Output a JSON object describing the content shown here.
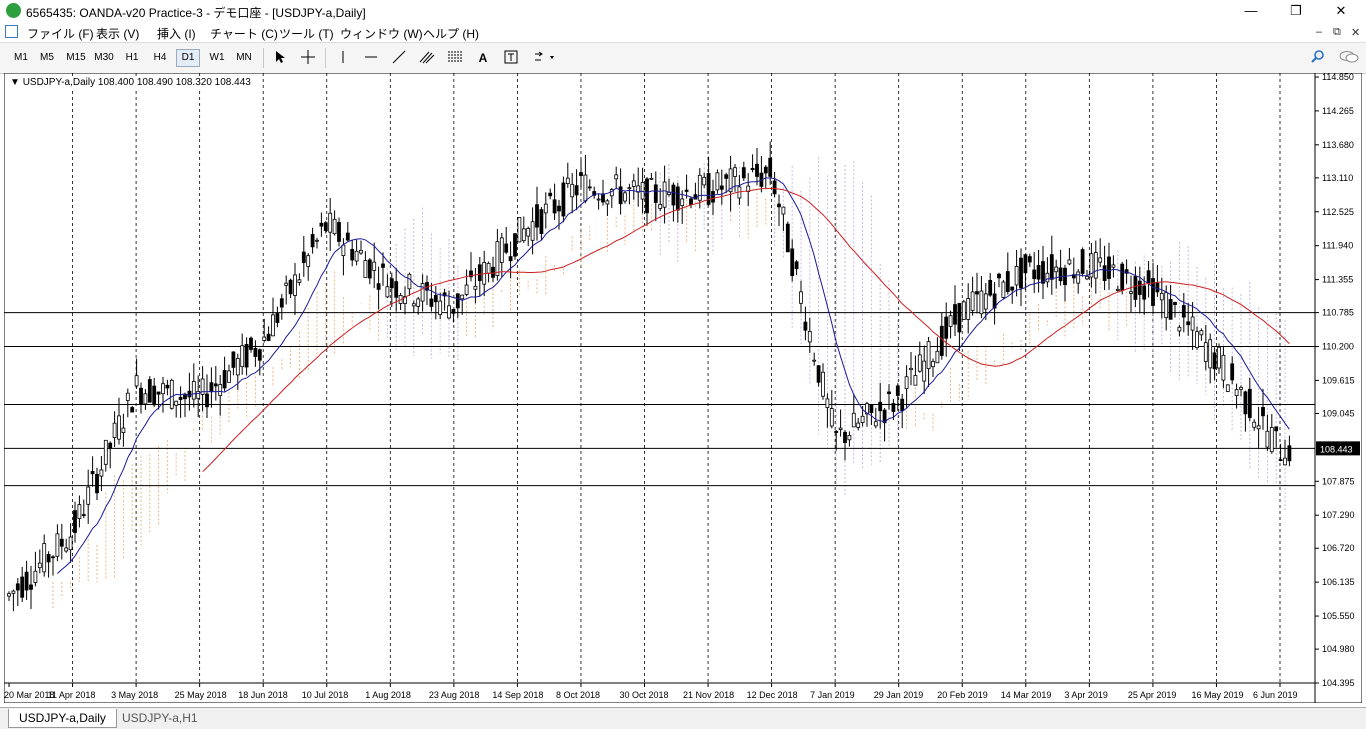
{
  "window": {
    "title": "6565435: OANDA-v20 Practice-3 - デモ口座 - [USDJPY-a,Daily]",
    "minimize": "—",
    "maximize": "❐",
    "close": "✕"
  },
  "menu": {
    "items": [
      "ファイル (F)",
      "表示 (V)",
      "挿入 (I)",
      "チャート (C)",
      "ツール (T)",
      "ウィンドウ (W)",
      "ヘルプ (H)"
    ],
    "mdi_minimize": "–",
    "mdi_restore": "⧉",
    "mdi_close": "✕"
  },
  "toolbar": {
    "timeframes": [
      "M1",
      "M5",
      "M15",
      "M30",
      "H1",
      "H4",
      "D1",
      "W1",
      "MN"
    ],
    "active_timeframe": "D1",
    "text_tool": "A"
  },
  "chart": {
    "info": "USDJPY-a,Daily  108.400 108.490 108.320 108.443",
    "current_price": "108.443",
    "price_ticks": [
      "114.850",
      "114.265",
      "113.680",
      "113.110",
      "112.525",
      "111.940",
      "111.355",
      "110.785",
      "110.200",
      "109.615",
      "109.045",
      "108.443",
      "107.875",
      "107.290",
      "106.720",
      "106.135",
      "105.550",
      "104.980",
      "104.395"
    ],
    "date_ticks": [
      "20 Mar 2018",
      "11 Apr 2018",
      "3 May 2018",
      "25 May 2018",
      "18 Jun 2018",
      "10 Jul 2018",
      "1 Aug 2018",
      "23 Aug 2018",
      "14 Sep 2018",
      "8 Oct 2018",
      "30 Oct 2018",
      "21 Nov 2018",
      "12 Dec 2018",
      "7 Jan 2019",
      "29 Jan 2019",
      "20 Feb 2019",
      "14 Mar 2019",
      "3 Apr 2019",
      "25 Apr 2019",
      "16 May 2019",
      "6 Jun 2019"
    ],
    "horizontal_levels": [
      110.785,
      110.2,
      109.2,
      108.443,
      107.8
    ],
    "colors": {
      "background": "#ffffff",
      "candle": "#000000",
      "ma_fast": "#1a1a9a",
      "ma_slow": "#cc2020",
      "cloud_bull": "#e8a060",
      "cloud_bear": "#b8a0d8"
    }
  },
  "chart_data": {
    "type": "line",
    "title": "USDJPY-a,Daily",
    "xlabel": "",
    "ylabel": "",
    "ylim": [
      104.395,
      114.85
    ],
    "x": [
      "20 Mar 2018",
      "11 Apr 2018",
      "3 May 2018",
      "25 May 2018",
      "18 Jun 2018",
      "10 Jul 2018",
      "1 Aug 2018",
      "23 Aug 2018",
      "14 Sep 2018",
      "8 Oct 2018",
      "30 Oct 2018",
      "21 Nov 2018",
      "12 Dec 2018",
      "7 Jan 2019",
      "29 Jan 2019",
      "20 Feb 2019",
      "14 Mar 2019",
      "3 Apr 2019",
      "25 Apr 2019",
      "16 May 2019",
      "6 Jun 2019"
    ],
    "series": [
      {
        "values": [
          105.9,
          107.0,
          109.5,
          109.3,
          110.3,
          112.3,
          111.3,
          110.9,
          112.1,
          113.0,
          112.8,
          112.9,
          113.2,
          108.6,
          109.3,
          110.8,
          111.5,
          111.6,
          111.2,
          110.0,
          108.44
        ]
      }
    ],
    "grid": true,
    "ohlc_last": {
      "open": 108.4,
      "high": 108.49,
      "low": 108.32,
      "close": 108.443
    }
  },
  "tabs": [
    {
      "label": "USDJPY-a,Daily",
      "active": true
    },
    {
      "label": "USDJPY-a,H1",
      "active": false
    }
  ]
}
